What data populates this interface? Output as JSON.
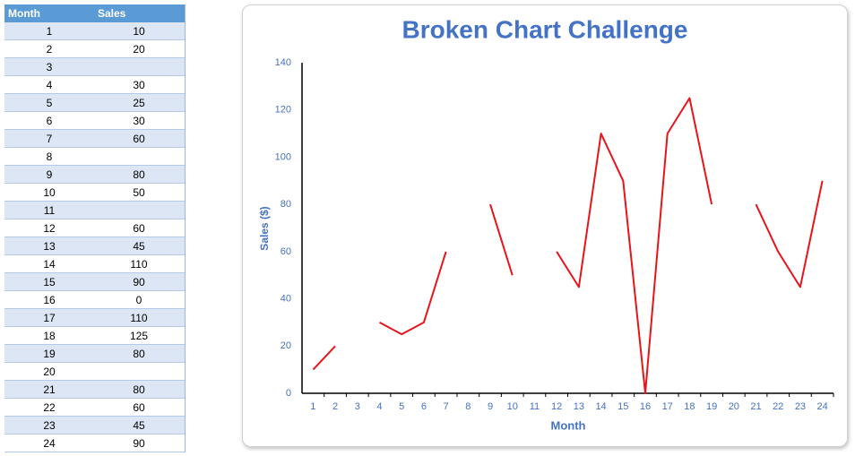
{
  "table": {
    "header": [
      "Month",
      "Sales"
    ],
    "rows": [
      [
        1,
        10
      ],
      [
        2,
        20
      ],
      [
        3,
        null
      ],
      [
        4,
        30
      ],
      [
        5,
        25
      ],
      [
        6,
        30
      ],
      [
        7,
        60
      ],
      [
        8,
        null
      ],
      [
        9,
        80
      ],
      [
        10,
        50
      ],
      [
        11,
        null
      ],
      [
        12,
        60
      ],
      [
        13,
        45
      ],
      [
        14,
        110
      ],
      [
        15,
        90
      ],
      [
        16,
        0
      ],
      [
        17,
        110
      ],
      [
        18,
        125
      ],
      [
        19,
        80
      ],
      [
        20,
        null
      ],
      [
        21,
        80
      ],
      [
        22,
        60
      ],
      [
        23,
        45
      ],
      [
        24,
        90
      ]
    ]
  },
  "chart_data": {
    "type": "line",
    "title": "Broken Chart Challenge",
    "x_label": "Month",
    "y_label": "Sales ($)",
    "categories": [
      1,
      2,
      3,
      4,
      5,
      6,
      7,
      8,
      9,
      10,
      11,
      12,
      13,
      14,
      15,
      16,
      17,
      18,
      19,
      20,
      21,
      22,
      23,
      24
    ],
    "series": [
      {
        "name": "Sales",
        "color": "#e8141c",
        "values": [
          10,
          20,
          null,
          30,
          25,
          30,
          60,
          null,
          80,
          50,
          null,
          60,
          45,
          110,
          90,
          0,
          110,
          125,
          80,
          null,
          80,
          60,
          45,
          90
        ]
      }
    ],
    "ylim": [
      0,
      140
    ],
    "yticks": [
      0,
      20,
      40,
      60,
      80,
      100,
      120,
      140
    ],
    "grid": false
  }
}
